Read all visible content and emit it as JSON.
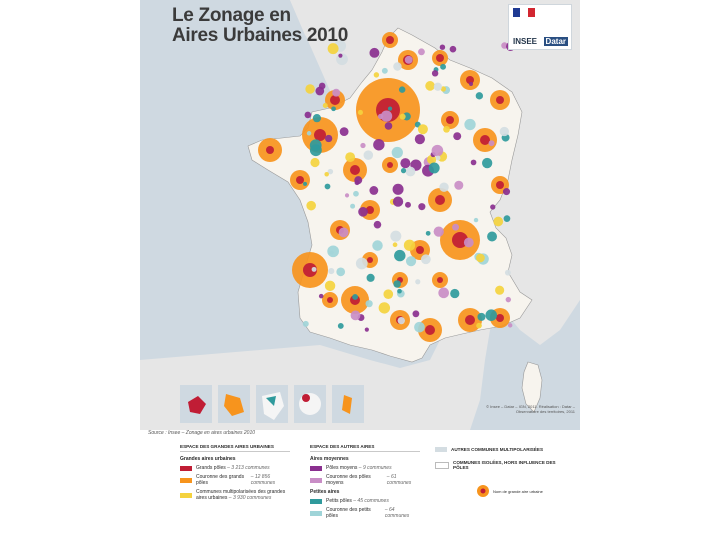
{
  "title": {
    "line1": "Le Zonage en",
    "line2": "Aires Urbaines 2010"
  },
  "logos": {
    "insee": "INSEE",
    "datar": "Datar"
  },
  "source": "Source : Insee – Zonage en aires urbaines 2010",
  "credits": "© Insee – Datar – IGN, 2011. Réalisation : Datar – Observatoire des territoires, 2011",
  "colors": {
    "sea": "#cfd9e1",
    "neighbors": "#e6e6e6",
    "france": "#f5f5f5",
    "grands_poles": "#c01d35",
    "couronne_grands_poles": "#f7941d",
    "multipolarisees": "#f4d23e",
    "poles_moyens": "#8a2f8f",
    "couronne_poles_moyens": "#c98dc6",
    "petits_poles": "#2f9a9c",
    "couronne_petits_poles": "#9fd4d8",
    "autres_multipolarisees": "#d4dde2"
  },
  "legend": {
    "col1": {
      "heading": "Espace des grandes aires urbaines",
      "subheading": "Grandes aires urbaines",
      "items": [
        {
          "label": "Grands pôles",
          "note": "– 3 213 communes",
          "color": "#c01d35"
        },
        {
          "label": "Couronne des grands pôles",
          "note": "– 12 856 communes",
          "color": "#f7941d"
        },
        {
          "label": "Communes multipolarisées des grandes aires urbaines",
          "note": "– 3 930 communes",
          "color": "#f4d23e"
        }
      ]
    },
    "col2": {
      "heading": "Espace des autres aires",
      "subheading1": "Aires moyennes",
      "items1": [
        {
          "label": "Pôles moyens",
          "note": "– 9 communes",
          "color": "#8a2f8f"
        },
        {
          "label": "Couronne des pôles moyens",
          "note": "– 61 communes",
          "color": "#c98dc6"
        }
      ],
      "subheading2": "Petites aires",
      "items2": [
        {
          "label": "Petits pôles",
          "note": "– 45 communes",
          "color": "#2f9a9c"
        },
        {
          "label": "Couronne des petits pôles",
          "note": "– 64 communes",
          "color": "#9fd4d8"
        }
      ]
    },
    "col3": {
      "item1": "Autres communes multipolarisées",
      "item2": "Communes isolées, hors influence des pôles",
      "inset_label": "Nom de grande aire urbaine"
    }
  }
}
